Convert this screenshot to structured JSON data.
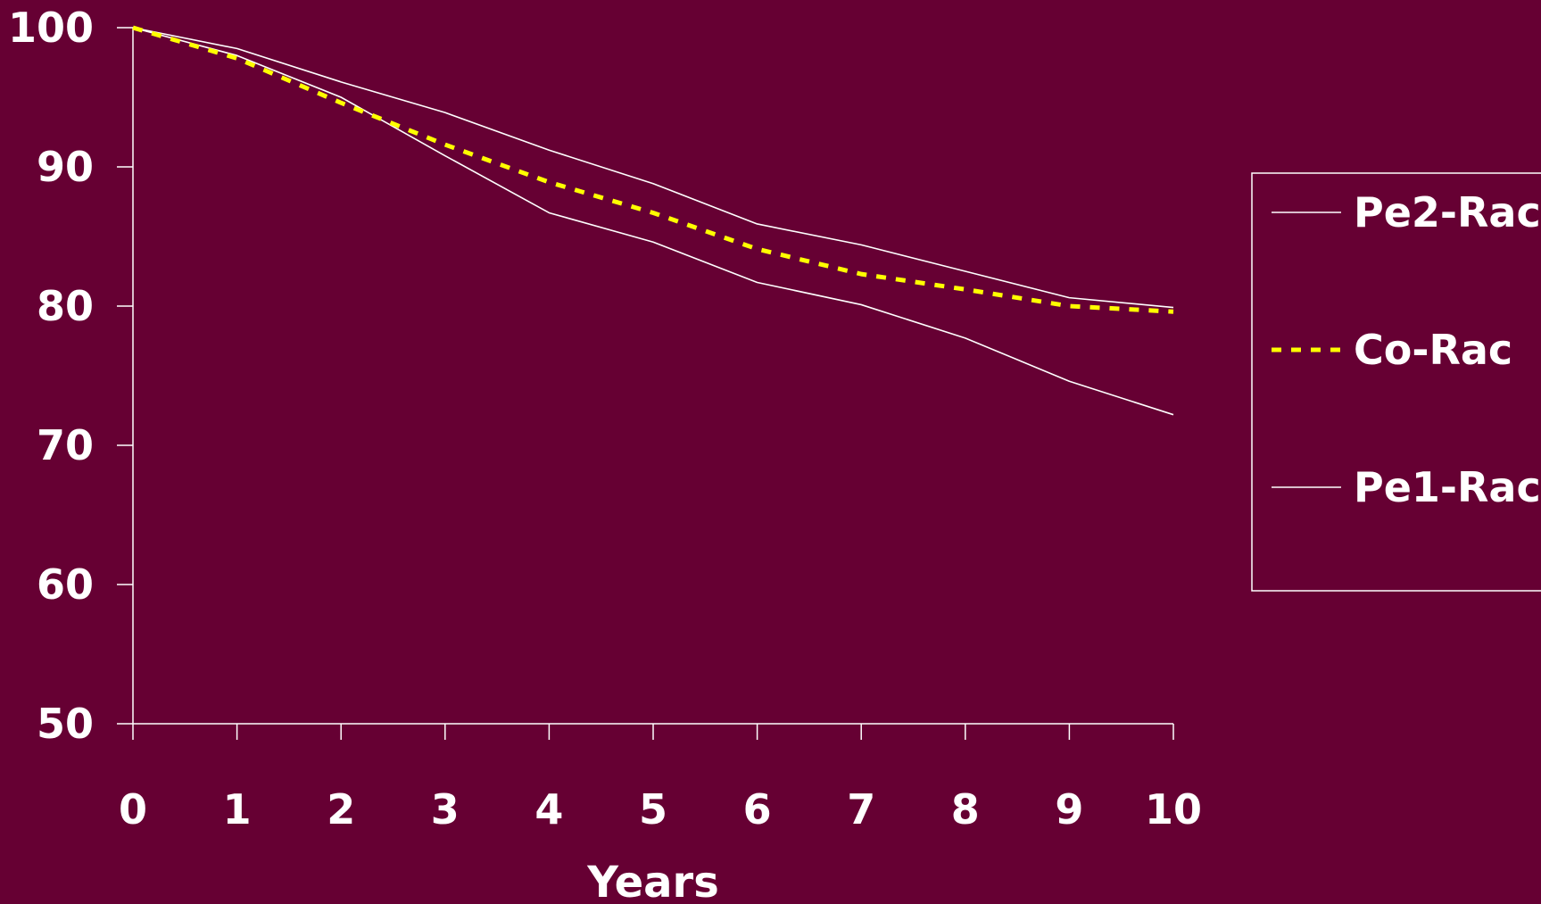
{
  "chart_data": {
    "type": "line",
    "xlabel": "Years",
    "ylabel": "",
    "x": [
      0,
      1,
      2,
      3,
      4,
      5,
      6,
      7,
      8,
      9,
      10
    ],
    "xlim": [
      0,
      10
    ],
    "ylim": [
      50,
      100
    ],
    "y_ticks": [
      100,
      90,
      80,
      70,
      60,
      50
    ],
    "x_ticks": [
      0,
      1,
      2,
      3,
      4,
      5,
      6,
      7,
      8,
      9,
      10
    ],
    "grid": false,
    "legend_position": "right",
    "series": [
      {
        "name": "Pe2-Rac",
        "color": "#ffffff",
        "style": "solid",
        "values": [
          100,
          98.5,
          96.1,
          93.9,
          91.2,
          88.8,
          85.9,
          84.4,
          82.5,
          80.6,
          79.9
        ]
      },
      {
        "name": "Co-Rac",
        "color": "#ffff00",
        "style": "dashed",
        "values": [
          100,
          97.8,
          94.6,
          91.6,
          88.9,
          86.7,
          84.1,
          82.3,
          81.2,
          80.0,
          79.6
        ]
      },
      {
        "name": "Pe1-Rac",
        "color": "#ffffff",
        "style": "solid",
        "values": [
          100,
          98.0,
          95.0,
          90.8,
          86.7,
          84.6,
          81.7,
          80.1,
          77.7,
          74.6,
          72.2
        ]
      }
    ]
  }
}
